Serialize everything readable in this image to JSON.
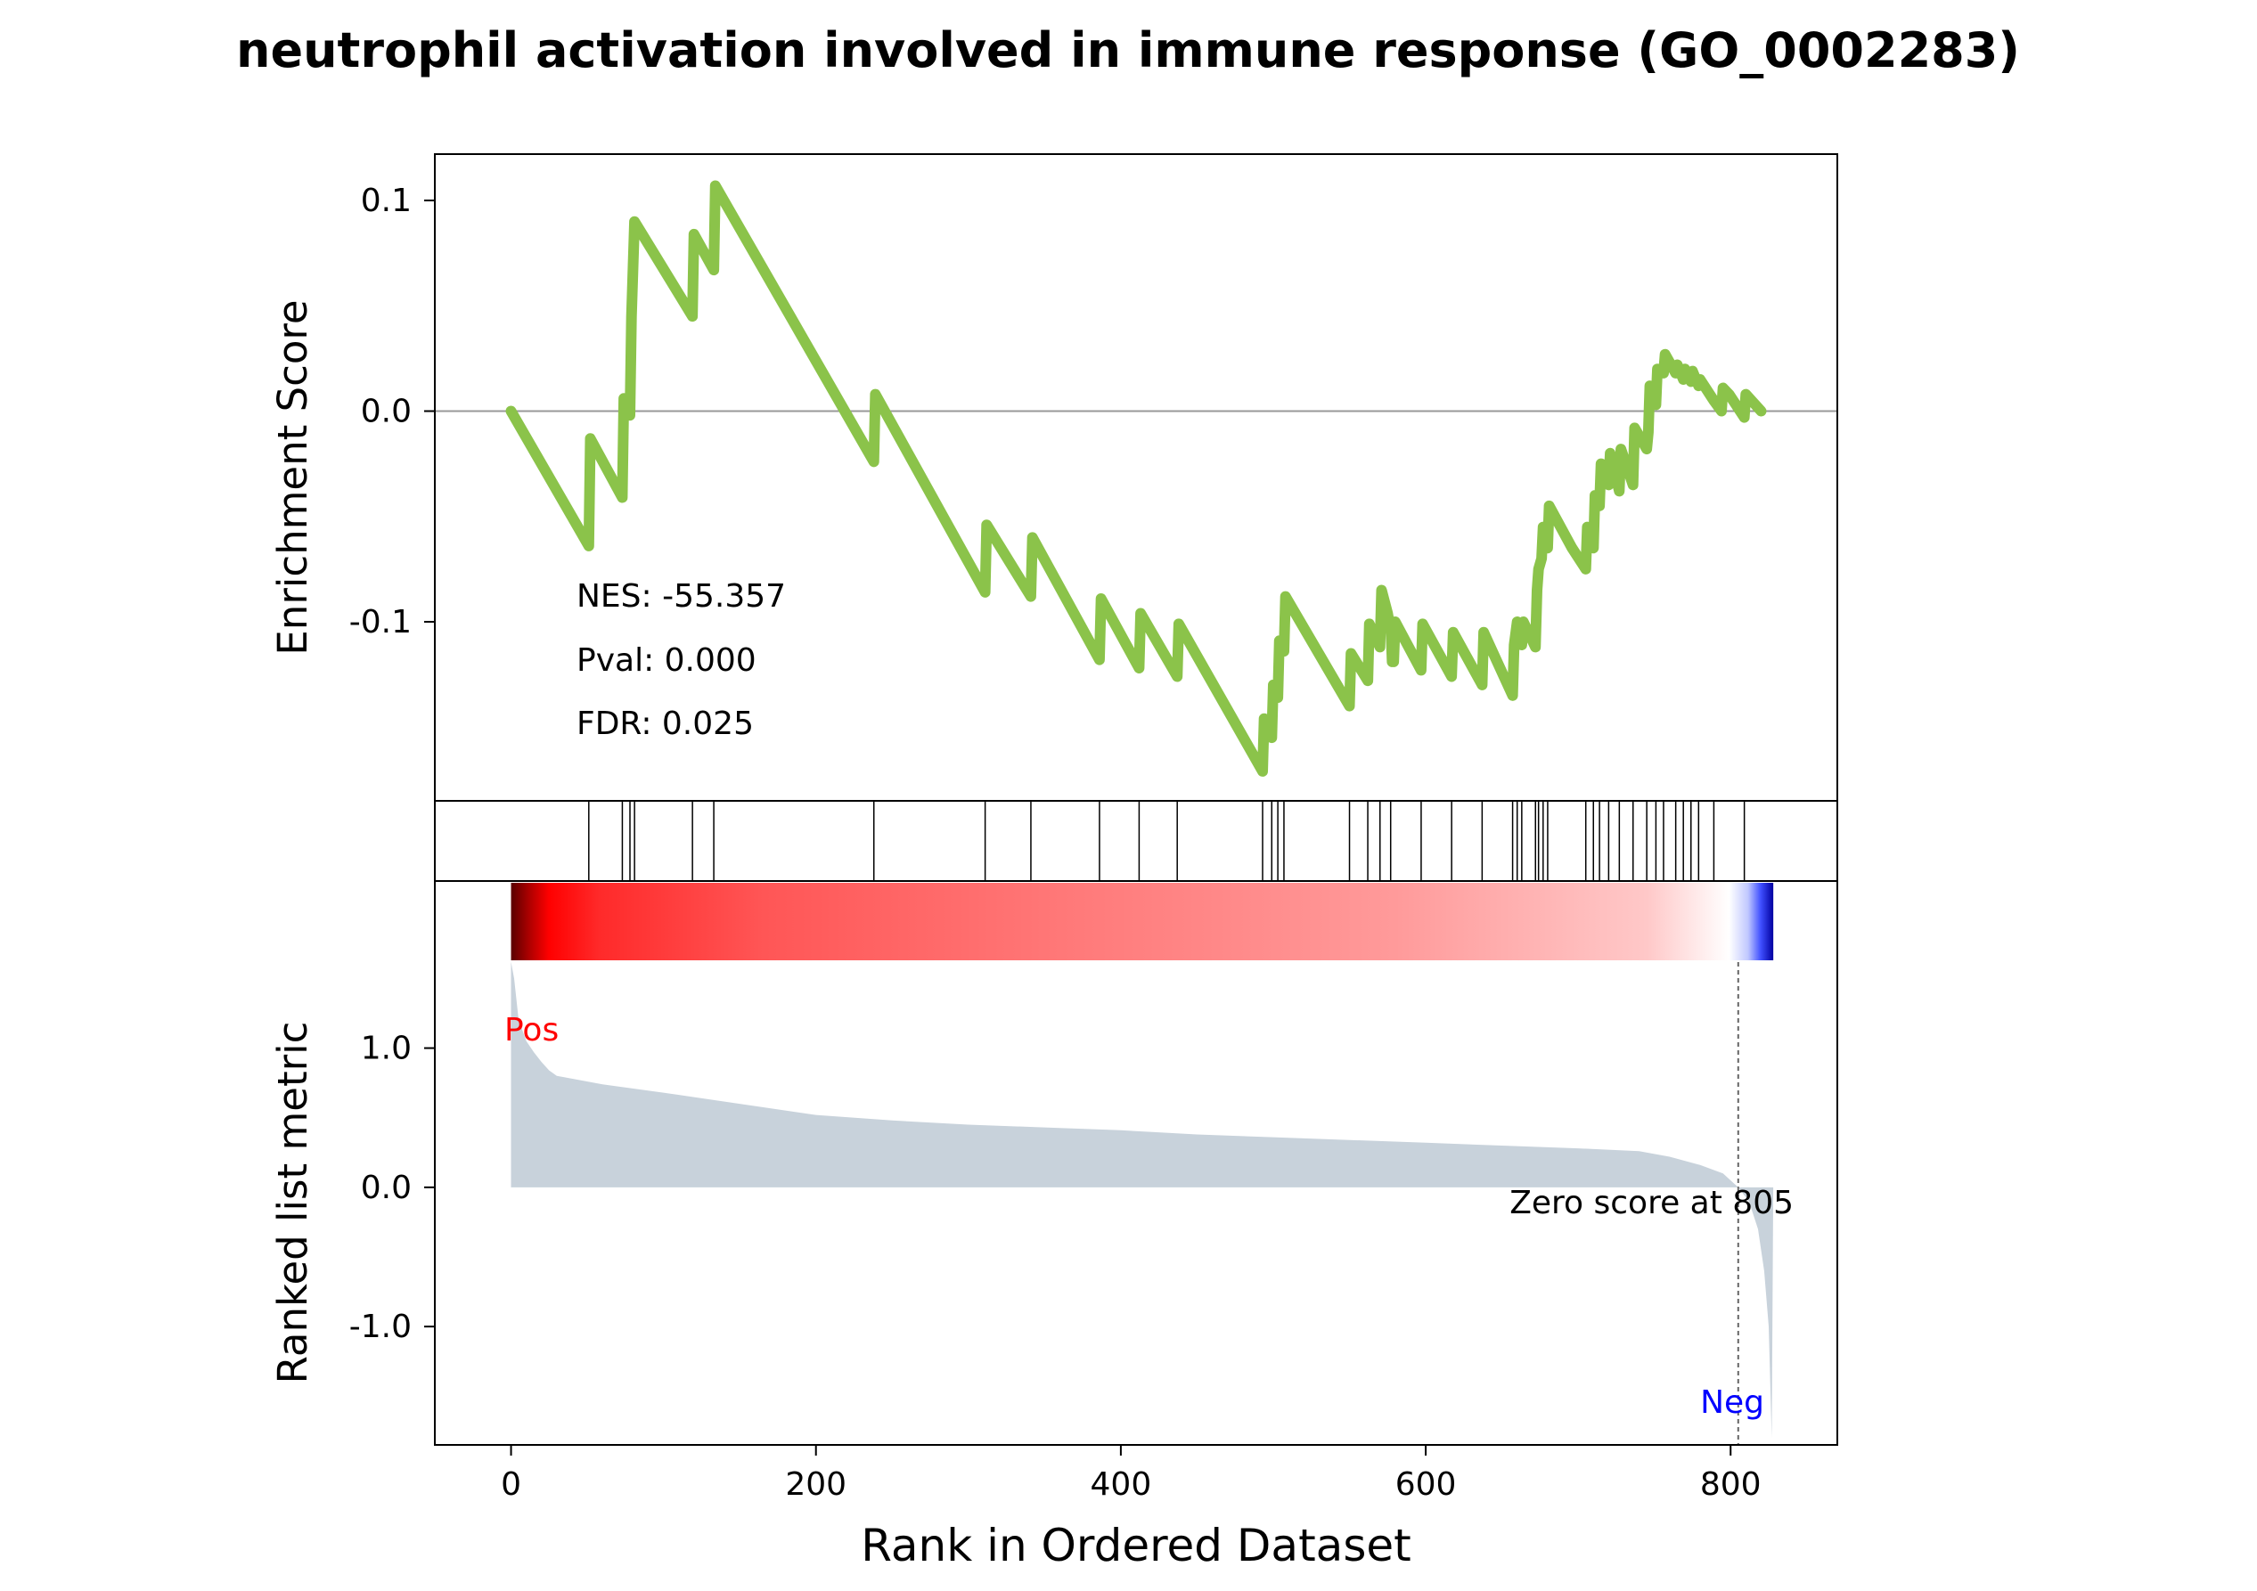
{
  "title": "neutrophil activation involved in immune response (GO_0002283)",
  "colors": {
    "es_line": "#8BC34A",
    "metric_fill": "#C8D2DB",
    "pos_label": "#FF0000",
    "neg_label": "#0000FF",
    "zero_line": "#999999",
    "hit_line": "#000000"
  },
  "chart_data": {
    "type": "line",
    "x_range": [
      -50,
      870
    ],
    "xticks": [
      0,
      200,
      400,
      600,
      800
    ],
    "xlabel": "Rank in Ordered Dataset",
    "es_panel": {
      "ylabel": "Enrichment Score",
      "ylim": [
        -0.185,
        0.122
      ],
      "yticks": [
        0.1,
        0.0,
        -0.1
      ],
      "ytick_labels": [
        "0.1",
        "0.0",
        "-0.1"
      ],
      "stats": {
        "nes": "NES: -55.357",
        "pval": "Pval: 0.000",
        "fdr": "FDR: 0.025"
      },
      "series": [
        {
          "points": [
            [
              0,
              0.0
            ],
            [
              51,
              -0.064
            ],
            [
              52,
              -0.013
            ],
            [
              73,
              -0.041
            ],
            [
              74,
              0.006
            ],
            [
              78,
              -0.002
            ],
            [
              79,
              0.045
            ],
            [
              81,
              0.09
            ],
            [
              119,
              0.045
            ],
            [
              120,
              0.084
            ],
            [
              133,
              0.067
            ],
            [
              134,
              0.107
            ],
            [
              238,
              -0.024
            ],
            [
              239,
              0.008
            ],
            [
              311,
              -0.086
            ],
            [
              312,
              -0.054
            ],
            [
              341,
              -0.088
            ],
            [
              342,
              -0.06
            ],
            [
              386,
              -0.118
            ],
            [
              387,
              -0.089
            ],
            [
              412,
              -0.122
            ],
            [
              413,
              -0.096
            ],
            [
              437,
              -0.126
            ],
            [
              438,
              -0.101
            ],
            [
              493,
              -0.171
            ],
            [
              494,
              -0.146
            ],
            [
              499,
              -0.155
            ],
            [
              500,
              -0.13
            ],
            [
              503,
              -0.136
            ],
            [
              504,
              -0.109
            ],
            [
              507,
              -0.114
            ],
            [
              508,
              -0.088
            ],
            [
              550,
              -0.14
            ],
            [
              551,
              -0.115
            ],
            [
              562,
              -0.128
            ],
            [
              563,
              -0.101
            ],
            [
              570,
              -0.112
            ],
            [
              571,
              -0.085
            ],
            [
              575,
              -0.096
            ],
            [
              576,
              -0.1
            ],
            [
              577,
              -0.1
            ],
            [
              578,
              -0.119
            ],
            [
              579,
              -0.119
            ],
            [
              580,
              -0.1
            ],
            [
              597,
              -0.123
            ],
            [
              598,
              -0.101
            ],
            [
              617,
              -0.126
            ],
            [
              618,
              -0.105
            ],
            [
              637,
              -0.13
            ],
            [
              638,
              -0.105
            ],
            [
              657,
              -0.135
            ],
            [
              658,
              -0.111
            ],
            [
              660,
              -0.1
            ],
            [
              663,
              -0.111
            ],
            [
              664,
              -0.1
            ],
            [
              672,
              -0.112
            ],
            [
              673,
              -0.085
            ],
            [
              674,
              -0.075
            ],
            [
              676,
              -0.07
            ],
            [
              677,
              -0.055
            ],
            [
              680,
              -0.065
            ],
            [
              681,
              -0.045
            ],
            [
              696,
              -0.065
            ],
            [
              705,
              -0.075
            ],
            [
              706,
              -0.055
            ],
            [
              710,
              -0.065
            ],
            [
              711,
              -0.04
            ],
            [
              714,
              -0.045
            ],
            [
              715,
              -0.025
            ],
            [
              720,
              -0.035
            ],
            [
              721,
              -0.02
            ],
            [
              727,
              -0.038
            ],
            [
              728,
              -0.018
            ],
            [
              736,
              -0.035
            ],
            [
              737,
              -0.008
            ],
            [
              745,
              -0.018
            ],
            [
              746,
              -0.01
            ],
            [
              747,
              0.012
            ],
            [
              751,
              0.003
            ],
            [
              752,
              0.02
            ],
            [
              756,
              0.018
            ],
            [
              757,
              0.027
            ],
            [
              764,
              0.018
            ],
            [
              765,
              0.022
            ],
            [
              769,
              0.015
            ],
            [
              770,
              0.02
            ],
            [
              774,
              0.014
            ],
            [
              775,
              0.019
            ],
            [
              779,
              0.012
            ],
            [
              780,
              0.015
            ],
            [
              789,
              0.005
            ],
            [
              794,
              0.0
            ],
            [
              795,
              0.011
            ],
            [
              799,
              0.008
            ],
            [
              809,
              -0.003
            ],
            [
              810,
              0.008
            ],
            [
              815,
              0.004
            ],
            [
              820,
              0.0
            ]
          ]
        }
      ]
    },
    "hits": [
      51,
      73,
      78,
      81,
      119,
      133,
      238,
      311,
      341,
      386,
      412,
      437,
      493,
      499,
      503,
      507,
      550,
      562,
      570,
      577,
      597,
      617,
      637,
      657,
      660,
      663,
      672,
      674,
      677,
      680,
      705,
      710,
      714,
      720,
      727,
      736,
      745,
      751,
      756,
      764,
      769,
      774,
      779,
      789,
      809
    ],
    "metric_panel": {
      "ylabel": "Ranked list metric",
      "ylim": [
        -1.85,
        2.2
      ],
      "yticks": [
        1.0,
        0.0,
        -1.0
      ],
      "ytick_labels": [
        "1.0",
        "0.0",
        "-1.0"
      ],
      "pos_label": "Pos",
      "neg_label": "Neg",
      "zero_score_label": "Zero score at 805",
      "zero_score_rank": 805,
      "heatmap_range": [
        0,
        828
      ],
      "curve": [
        [
          0,
          1.62
        ],
        [
          2,
          1.5
        ],
        [
          5,
          1.2
        ],
        [
          10,
          1.05
        ],
        [
          15,
          0.97
        ],
        [
          20,
          0.9
        ],
        [
          25,
          0.84
        ],
        [
          30,
          0.8
        ],
        [
          40,
          0.78
        ],
        [
          60,
          0.74
        ],
        [
          100,
          0.68
        ],
        [
          150,
          0.6
        ],
        [
          200,
          0.52
        ],
        [
          250,
          0.48
        ],
        [
          300,
          0.45
        ],
        [
          350,
          0.43
        ],
        [
          400,
          0.41
        ],
        [
          450,
          0.38
        ],
        [
          500,
          0.36
        ],
        [
          550,
          0.34
        ],
        [
          600,
          0.32
        ],
        [
          650,
          0.3
        ],
        [
          700,
          0.28
        ],
        [
          740,
          0.26
        ],
        [
          760,
          0.22
        ],
        [
          780,
          0.16
        ],
        [
          795,
          0.1
        ],
        [
          805,
          0.0
        ],
        [
          812,
          -0.1
        ],
        [
          818,
          -0.3
        ],
        [
          822,
          -0.6
        ],
        [
          825,
          -1.0
        ],
        [
          826,
          -1.4
        ],
        [
          827,
          -1.8
        ],
        [
          828,
          0.0
        ]
      ]
    }
  }
}
